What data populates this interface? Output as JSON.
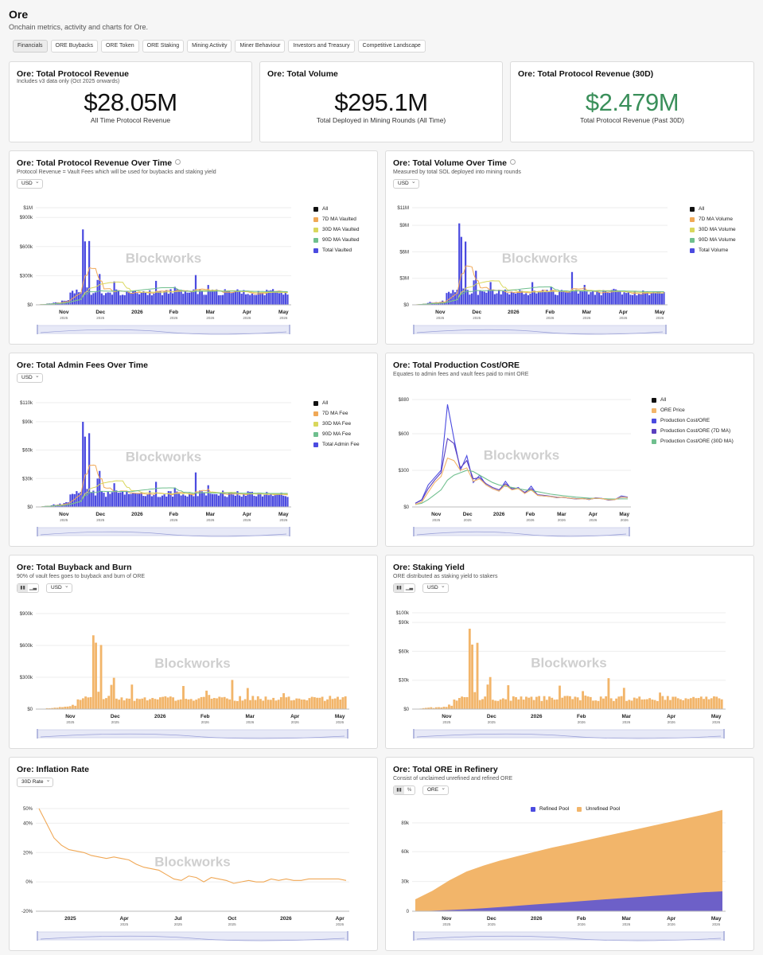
{
  "header": {
    "title": "Ore",
    "subtitle": "Onchain metrics, activity and charts for Ore."
  },
  "tabs": [
    "Financials",
    "ORE Buybacks",
    "ORE Token",
    "ORE Staking",
    "Mining Activity",
    "Miner Behaviour",
    "Investors and Treasury",
    "Competitive Landscape"
  ],
  "watermark": "Blockworks",
  "colors": {
    "blue": "#4b4be0",
    "orange": "#f2b56a",
    "ma7": "#f0a856",
    "ma30": "#d9d75c",
    "ma90": "#6fbf8e",
    "green_kpi": "#3a8f5a",
    "purple": "#5a3fbf"
  },
  "kpis": [
    {
      "title": "Ore: Total Protocol Revenue",
      "subtitle": "Includes v3 data only (Oct 2025 onwards)",
      "value": "$28.05M",
      "label": "All Time Protocol Revenue"
    },
    {
      "title": "Ore: Total Volume",
      "subtitle": "",
      "value": "$295.1M",
      "label": "Total Deployed in Mining Rounds (All Time)"
    },
    {
      "title": "Ore: Total Protocol Revenue (30D)",
      "subtitle": "",
      "value": "$2.479M",
      "label": "Total Protocol Revenue (Past 30D)"
    }
  ],
  "panels": {
    "rev": {
      "title": "Ore: Total Protocol Revenue Over Time",
      "subtitle": "Protocol Revenue = Vault Fees which will be used for buybacks and staking yield",
      "dropdown": "USD",
      "legend": [
        {
          "label": "All",
          "color": "#111111"
        },
        {
          "label": "7D MA Vaulted",
          "color": "#f0a856"
        },
        {
          "label": "30D MA Vaulted",
          "color": "#d9d75c"
        },
        {
          "label": "90D MA Vaulted",
          "color": "#6fbf8e"
        },
        {
          "label": "Total Vaulted",
          "color": "#4b4be0"
        }
      ]
    },
    "vol": {
      "title": "Ore: Total Volume Over Time",
      "subtitle": "Measured by total SOL deployed into mining rounds",
      "dropdown": "USD",
      "legend": [
        {
          "label": "All",
          "color": "#111111"
        },
        {
          "label": "7D MA Volume",
          "color": "#f0a856"
        },
        {
          "label": "30D MA Volume",
          "color": "#d9d75c"
        },
        {
          "label": "90D MA Volume",
          "color": "#6fbf8e"
        },
        {
          "label": "Total Volume",
          "color": "#4b4be0"
        }
      ]
    },
    "admin": {
      "title": "Ore: Total Admin Fees Over Time",
      "subtitle": "",
      "dropdown": "USD",
      "legend": [
        {
          "label": "All",
          "color": "#111111"
        },
        {
          "label": "7D MA Fee",
          "color": "#f0a856"
        },
        {
          "label": "30D MA Fee",
          "color": "#d9d75c"
        },
        {
          "label": "90D MA Fee",
          "color": "#6fbf8e"
        },
        {
          "label": "Total Admin Fee",
          "color": "#4b4be0"
        }
      ]
    },
    "cost": {
      "title": "Ore: Total Production Cost/ORE",
      "subtitle": "Equates to admin fees and vault fees paid to mint ORE",
      "dropdown": "",
      "legend": [
        {
          "label": "All",
          "color": "#111111"
        },
        {
          "label": "ORE Price",
          "color": "#f2b56a"
        },
        {
          "label": "Production Cost/ORE",
          "color": "#4b4be0"
        },
        {
          "label": "Production Cost/ORE (7D MA)",
          "color": "#5a3fbf"
        },
        {
          "label": "Production Cost/ORE (30D MA)",
          "color": "#6fbf8e"
        }
      ]
    },
    "buyback": {
      "title": "Ore: Total Buyback and Burn",
      "subtitle": "90% of vault fees goes to buyback and burn of ORE",
      "dropdown": "USD"
    },
    "staking": {
      "title": "Ore: Staking Yield",
      "subtitle": "ORE distributed as staking yield to stakers",
      "dropdown": "USD"
    },
    "inflation": {
      "title": "Ore: Inflation Rate",
      "subtitle": "",
      "dropdown": "30D Rate"
    },
    "refinery": {
      "title": "Ore: Total ORE in Refinery",
      "subtitle": "Consist of unclaimed unrefined and refined ORE",
      "dropdown": "ORE",
      "legend": [
        {
          "label": "Refined Pool",
          "color": "#4b4be0"
        },
        {
          "label": "Unrefined Pool",
          "color": "#f2b56a"
        }
      ]
    }
  },
  "chart_data": [
    {
      "id": "rev",
      "type": "bar",
      "title": "Ore: Total Protocol Revenue Over Time",
      "yticks": [
        "$0",
        "$300k",
        "$600k",
        "$900k",
        "$1M"
      ],
      "ytick_values": [
        0,
        300000,
        600000,
        900000,
        1000000
      ],
      "ylim": [
        0,
        1000000
      ],
      "xticks": [
        [
          "Nov",
          "2025"
        ],
        [
          "Dec",
          "2025"
        ],
        [
          "2026",
          ""
        ],
        [
          "Feb",
          "2026"
        ],
        [
          "Mar",
          "2026"
        ],
        [
          "Apr",
          "2026"
        ],
        [
          "May",
          "2026"
        ]
      ],
      "x_start": "2025-10-15",
      "x_end": "2026-05-20",
      "series": [
        {
          "name": "Total Vaulted",
          "color": "#4b4be0",
          "peaks": [
            [
              0.18,
              1000000
            ],
            [
              0.2,
              750000
            ],
            [
              0.24,
              540000
            ],
            [
              0.3,
              300000
            ],
            [
              0.47,
              250000
            ],
            [
              0.55,
              300000
            ],
            [
              0.63,
              340000
            ],
            [
              0.68,
              230000
            ],
            [
              0.8,
              180000
            ],
            [
              0.95,
              120000
            ]
          ],
          "base": 130000
        }
      ]
    },
    {
      "id": "vol",
      "type": "bar",
      "title": "Ore: Total Volume Over Time",
      "yticks": [
        "$0",
        "$3M",
        "$6M",
        "$9M",
        "$11M"
      ],
      "ytick_values": [
        0,
        3000000,
        6000000,
        9000000,
        11000000
      ],
      "ylim": [
        0,
        11000000
      ],
      "xticks": [
        [
          "Nov",
          "2025"
        ],
        [
          "Dec",
          "2025"
        ],
        [
          "2026",
          ""
        ],
        [
          "Feb",
          "2026"
        ],
        [
          "Mar",
          "2026"
        ],
        [
          "Apr",
          "2026"
        ],
        [
          "May",
          "2026"
        ]
      ],
      "x_start": "2025-10-15",
      "x_end": "2026-05-20",
      "series": [
        {
          "name": "Total Volume",
          "color": "#4b4be0",
          "peaks": [
            [
              0.18,
              11000000
            ],
            [
              0.2,
              8000000
            ],
            [
              0.24,
              6000000
            ],
            [
              0.3,
              3300000
            ],
            [
              0.47,
              2800000
            ],
            [
              0.55,
              3300000
            ],
            [
              0.63,
              4000000
            ],
            [
              0.68,
              2500000
            ],
            [
              0.8,
              2000000
            ],
            [
              0.95,
              1300000
            ]
          ],
          "base": 1400000
        }
      ]
    },
    {
      "id": "admin",
      "type": "bar",
      "title": "Ore: Total Admin Fees Over Time",
      "yticks": [
        "$0",
        "$30k",
        "$60k",
        "$90k",
        "$110k"
      ],
      "ytick_values": [
        0,
        30000,
        60000,
        90000,
        110000
      ],
      "ylim": [
        0,
        110000
      ],
      "xticks": [
        [
          "Nov",
          "2025"
        ],
        [
          "Dec",
          "2025"
        ],
        [
          "2026",
          ""
        ],
        [
          "Feb",
          "2026"
        ],
        [
          "Mar",
          "2026"
        ],
        [
          "Apr",
          "2026"
        ],
        [
          "May",
          "2026"
        ]
      ],
      "x_start": "2025-10-15",
      "x_end": "2026-05-20",
      "series": [
        {
          "name": "Total Admin Fee",
          "color": "#4b4be0",
          "peaks": [
            [
              0.18,
              110000
            ],
            [
              0.2,
              85000
            ],
            [
              0.24,
              60000
            ],
            [
              0.3,
              33000
            ],
            [
              0.47,
              28000
            ],
            [
              0.55,
              33000
            ],
            [
              0.63,
              38000
            ],
            [
              0.68,
              25000
            ],
            [
              0.8,
              20000
            ],
            [
              0.95,
              13000
            ]
          ],
          "base": 14000
        }
      ]
    },
    {
      "id": "cost",
      "type": "line",
      "title": "Ore: Total Production Cost/ORE",
      "yticks": [
        "$0",
        "$300",
        "$600",
        "$880"
      ],
      "ytick_values": [
        0,
        300,
        600,
        880
      ],
      "ylim": [
        0,
        880
      ],
      "xticks": [
        [
          "Nov",
          "2025"
        ],
        [
          "Dec",
          "2025"
        ],
        [
          "2026",
          ""
        ],
        [
          "Feb",
          "2026"
        ],
        [
          "Mar",
          "2026"
        ],
        [
          "Apr",
          "2026"
        ],
        [
          "May",
          "2026"
        ]
      ],
      "x_start": "2025-10-15",
      "x_end": "2026-05-20",
      "series": [
        {
          "name": "Production Cost/ORE",
          "color": "#4b4be0",
          "values": [
            30,
            60,
            180,
            240,
            300,
            840,
            560,
            300,
            420,
            200,
            260,
            180,
            150,
            130,
            210,
            140,
            160,
            110,
            170,
            95,
            90,
            85,
            75,
            80,
            70,
            65,
            70,
            60,
            75,
            70,
            55,
            60,
            90,
            80
          ]
        },
        {
          "name": "Production Cost/ORE (7D MA)",
          "color": "#5a3fbf",
          "values": [
            30,
            55,
            150,
            220,
            280,
            560,
            520,
            320,
            380,
            230,
            240,
            190,
            160,
            140,
            190,
            150,
            150,
            120,
            150,
            100,
            95,
            88,
            80,
            78,
            72,
            68,
            68,
            64,
            70,
            68,
            60,
            62,
            80,
            78
          ]
        },
        {
          "name": "Production Cost/ORE (30D MA)",
          "color": "#6fbf8e",
          "values": [
            20,
            30,
            60,
            100,
            140,
            220,
            260,
            280,
            300,
            290,
            260,
            230,
            200,
            180,
            170,
            160,
            150,
            140,
            135,
            125,
            115,
            105,
            98,
            92,
            86,
            80,
            76,
            72,
            70,
            68,
            66,
            65,
            66,
            66
          ]
        },
        {
          "name": "ORE Price",
          "color": "#f2b56a",
          "values": [
            20,
            40,
            120,
            200,
            250,
            400,
            380,
            300,
            320,
            210,
            230,
            180,
            150,
            130,
            180,
            140,
            150,
            110,
            140,
            95,
            90,
            85,
            78,
            80,
            72,
            66,
            68,
            62,
            72,
            68,
            58,
            60,
            82,
            76
          ]
        }
      ]
    },
    {
      "id": "buyback",
      "type": "bar",
      "title": "Ore: Total Buyback and Burn",
      "yticks": [
        "$0",
        "$300k",
        "$600k",
        "$900k"
      ],
      "ytick_values": [
        0,
        300000,
        600000,
        900000
      ],
      "ylim": [
        0,
        900000
      ],
      "xticks": [
        [
          "Nov",
          "2025"
        ],
        [
          "Dec",
          "2025"
        ],
        [
          "2026",
          ""
        ],
        [
          "Feb",
          "2026"
        ],
        [
          "Mar",
          "2026"
        ],
        [
          "Apr",
          "2026"
        ],
        [
          "May",
          "2026"
        ]
      ],
      "x_start": "2025-10-15",
      "x_end": "2026-05-20",
      "series": [
        {
          "name": "Buyback and Burn",
          "color": "#f2b56a",
          "peaks": [
            [
              0.18,
              900000
            ],
            [
              0.2,
              700000
            ],
            [
              0.24,
              480000
            ],
            [
              0.3,
              290000
            ],
            [
              0.47,
              240000
            ],
            [
              0.55,
              280000
            ],
            [
              0.63,
              300000
            ],
            [
              0.68,
              210000
            ],
            [
              0.8,
              170000
            ],
            [
              0.95,
              110000
            ]
          ],
          "base": 100000
        }
      ]
    },
    {
      "id": "staking",
      "type": "bar",
      "title": "Ore: Staking Yield",
      "yticks": [
        "$0",
        "$30k",
        "$60k",
        "$90k",
        "$100k"
      ],
      "ytick_values": [
        0,
        30000,
        60000,
        90000,
        100000
      ],
      "ylim": [
        0,
        100000
      ],
      "xticks": [
        [
          "Nov",
          "2025"
        ],
        [
          "Dec",
          "2025"
        ],
        [
          "2026",
          ""
        ],
        [
          "Feb",
          "2026"
        ],
        [
          "Mar",
          "2026"
        ],
        [
          "Apr",
          "2026"
        ],
        [
          "May",
          "2026"
        ]
      ],
      "x_start": "2025-10-15",
      "x_end": "2026-05-20",
      "series": [
        {
          "name": "Staking Yield",
          "color": "#f2b56a",
          "peaks": [
            [
              0.18,
              100000
            ],
            [
              0.2,
              78000
            ],
            [
              0.24,
              55000
            ],
            [
              0.3,
              32000
            ],
            [
              0.47,
              26000
            ],
            [
              0.55,
              30000
            ],
            [
              0.63,
              34000
            ],
            [
              0.68,
              23000
            ],
            [
              0.8,
              19000
            ],
            [
              0.95,
              12000
            ]
          ],
          "base": 11000
        }
      ]
    },
    {
      "id": "inflation",
      "type": "line",
      "title": "Ore: Inflation Rate",
      "yticks": [
        "-20%",
        "0%",
        "20%",
        "40%",
        "50%"
      ],
      "ytick_values": [
        -20,
        0,
        20,
        40,
        50
      ],
      "ylim": [
        -20,
        50
      ],
      "xticks": [
        [
          "2025",
          ""
        ],
        [
          "Apr",
          "2025"
        ],
        [
          "Jul",
          "2025"
        ],
        [
          "Oct",
          "2025"
        ],
        [
          "2026",
          ""
        ],
        [
          "Apr",
          "2026"
        ]
      ],
      "x_start": "2024-10-01",
      "x_end": "2026-06-01",
      "series": [
        {
          "name": "30D Rate",
          "color": "#f0a856",
          "values": [
            50,
            40,
            30,
            25,
            22,
            21,
            20,
            18,
            17,
            16,
            17,
            16,
            15,
            12,
            10,
            9,
            8,
            5,
            2,
            1,
            4,
            3,
            0,
            3,
            2,
            1,
            -1,
            0,
            1,
            0,
            0,
            2,
            1,
            2,
            1,
            1,
            2,
            2,
            2,
            2,
            2,
            1
          ]
        }
      ]
    },
    {
      "id": "refinery",
      "type": "area",
      "title": "Ore: Total ORE in Refinery",
      "yticks": [
        "0",
        "30k",
        "60k",
        "89k"
      ],
      "ytick_values": [
        0,
        30000,
        60000,
        89000
      ],
      "ylim": [
        0,
        89000
      ],
      "xticks": [
        [
          "Nov",
          "2025"
        ],
        [
          "Dec",
          "2025"
        ],
        [
          "2026",
          ""
        ],
        [
          "Feb",
          "2026"
        ],
        [
          "Mar",
          "2026"
        ],
        [
          "Apr",
          "2026"
        ],
        [
          "May",
          "2026"
        ]
      ],
      "x_start": "2025-10-15",
      "x_end": "2026-05-20",
      "series": [
        {
          "name": "Refined Pool",
          "color": "#4b4be0",
          "values": [
            0,
            500,
            1200,
            2000,
            3000,
            4200,
            5500,
            6800,
            8000,
            9200,
            10500,
            11800,
            13000,
            14200,
            15500,
            16700,
            18000,
            19200,
            20000
          ]
        },
        {
          "name": "Unrefined Pool",
          "color": "#f2b56a",
          "values": [
            12000,
            20000,
            30000,
            38000,
            43000,
            47000,
            50000,
            53000,
            56000,
            58500,
            61000,
            63500,
            66000,
            68500,
            71000,
            73500,
            76000,
            78500,
            82000
          ]
        }
      ]
    }
  ]
}
